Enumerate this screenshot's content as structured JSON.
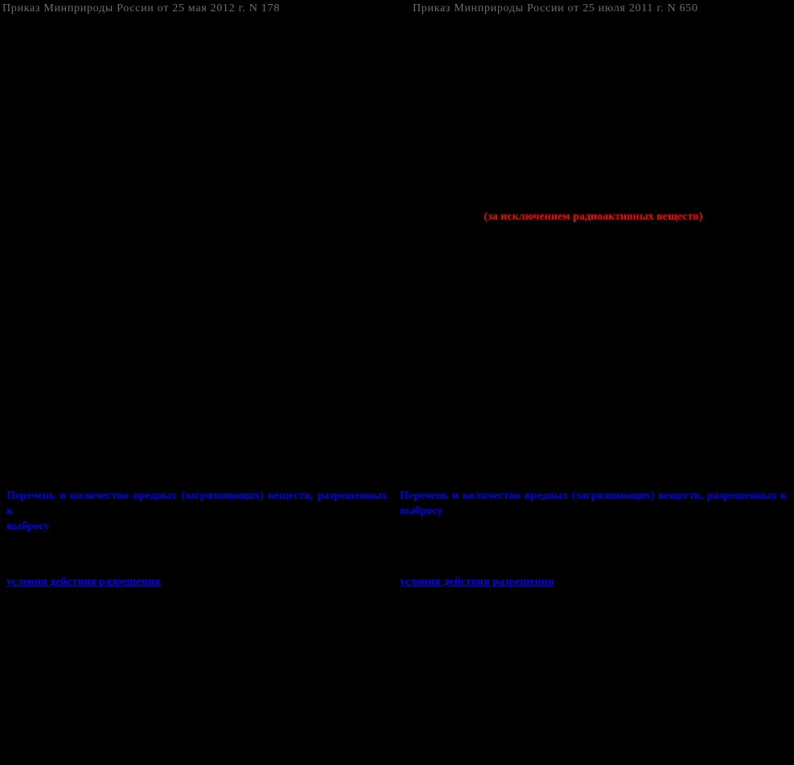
{
  "colors": {
    "background": "#000000",
    "muted_header_text": "#6e6e6e",
    "added_text_red": "#ff0000",
    "changed_text_blue": "#0000e8",
    "link_blue": "#0000ff"
  },
  "left_document": {
    "header": "Приказ Минприроды России от 25 мая 2012 г. N 178",
    "emissions_heading": {
      "line1": "Перечень и количество вредных (загрязняющих) веществ, разрешенных к",
      "line2": "выбросу"
    },
    "conditions_link": "условия действия разрешения"
  },
  "right_document": {
    "header": "Приказ Минприроды России от 25 июля 2011 г. N 650",
    "exclusion_note": "(за исключением радиоактивных веществ)",
    "emissions_heading": {
      "line1": "Перечень и количество вредных (загрязняющих)  веществ,  разрешенных  к",
      "line2": "выбросу"
    },
    "conditions_link": "условия действия разрешения"
  }
}
